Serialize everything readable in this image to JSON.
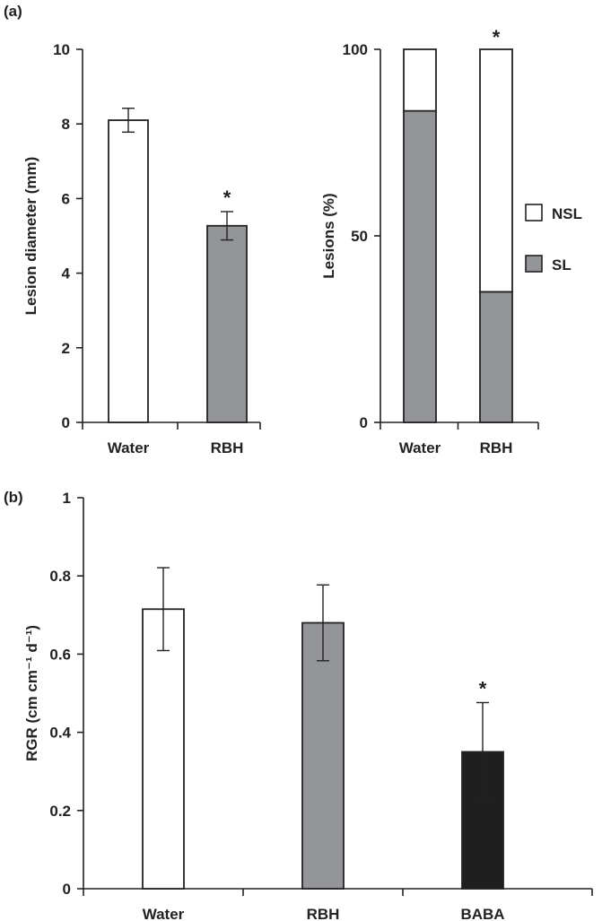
{
  "panels": {
    "a": {
      "label": "(a)"
    },
    "b": {
      "label": "(b)"
    }
  },
  "chart_data": [
    {
      "id": "a_left",
      "type": "bar",
      "categories": [
        "Water",
        "RBH"
      ],
      "values": [
        8.1,
        5.27
      ],
      "errors": [
        0.32,
        0.38
      ],
      "colors": [
        "#ffffff",
        "#939598"
      ],
      "significance": [
        "",
        "*"
      ],
      "ylabel": "Lesion diameter (mm)",
      "ylim": [
        0,
        10
      ],
      "yticks": [
        0,
        2,
        4,
        6,
        8,
        10
      ],
      "grid": false
    },
    {
      "id": "a_right",
      "type": "bar",
      "stacked": true,
      "categories": [
        "Water",
        "RBH"
      ],
      "series": [
        {
          "name": "SL",
          "values": [
            83.5,
            35.0
          ],
          "color": "#939598"
        },
        {
          "name": "NSL",
          "values": [
            16.5,
            65.0
          ],
          "color": "#ffffff"
        }
      ],
      "significance": [
        "",
        "*"
      ],
      "ylabel": "Lesions (%)",
      "ylim": [
        0,
        100
      ],
      "yticks": [
        0,
        50,
        100
      ],
      "legend": {
        "position": "right",
        "items": [
          "NSL",
          "SL"
        ]
      },
      "grid": false
    },
    {
      "id": "b",
      "type": "bar",
      "categories": [
        "Water",
        "RBH",
        "BABA"
      ],
      "values": [
        0.715,
        0.68,
        0.35
      ],
      "errors": [
        0.106,
        0.097,
        0.126
      ],
      "colors": [
        "#ffffff",
        "#939598",
        "#1f1f1f"
      ],
      "significance": [
        "",
        "",
        "*"
      ],
      "ylabel": "RGR (cm cm⁻¹ d⁻¹)",
      "ylim": [
        0,
        1
      ],
      "yticks": [
        "0",
        "0.2",
        "0.4",
        "0.6",
        "0.8",
        "1"
      ],
      "grid": false
    }
  ]
}
